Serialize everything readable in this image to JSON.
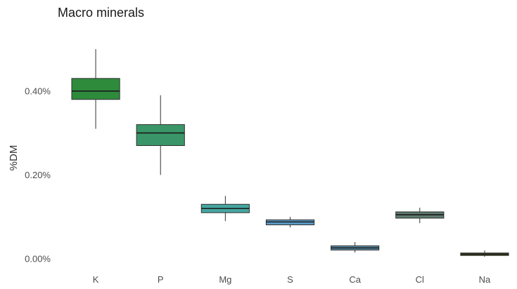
{
  "chart_data": {
    "type": "box",
    "title": "Macro minerals",
    "xlabel": "",
    "ylabel": "%DM",
    "y_unit": "%",
    "ylim": [
      -0.005,
      0.52
    ],
    "y_ticks": [
      0.0,
      0.2,
      0.4
    ],
    "y_tick_labels": [
      "0.00%",
      "0.20%",
      "0.40%"
    ],
    "grid": false,
    "legend": "none",
    "categories": [
      "K",
      "P",
      "Mg",
      "S",
      "Ca",
      "Cl",
      "Na"
    ],
    "series": [
      {
        "boxes": [
          {
            "category": "K",
            "min": 0.31,
            "q1": 0.38,
            "median": 0.4,
            "q3": 0.43,
            "max": 0.5,
            "color": "#2e8b3c"
          },
          {
            "category": "P",
            "min": 0.2,
            "q1": 0.27,
            "median": 0.3,
            "q3": 0.32,
            "max": 0.39,
            "color": "#3a9668"
          },
          {
            "category": "Mg",
            "min": 0.09,
            "q1": 0.11,
            "median": 0.12,
            "q3": 0.13,
            "max": 0.15,
            "color": "#46a6a0"
          },
          {
            "category": "S",
            "min": 0.075,
            "q1": 0.081,
            "median": 0.088,
            "q3": 0.093,
            "max": 0.1,
            "color": "#5b9ac7"
          },
          {
            "category": "Ca",
            "min": 0.015,
            "q1": 0.021,
            "median": 0.026,
            "q3": 0.031,
            "max": 0.04,
            "color": "#5a8ea6"
          },
          {
            "category": "Cl",
            "min": 0.085,
            "q1": 0.097,
            "median": 0.105,
            "q3": 0.112,
            "max": 0.122,
            "color": "#5f7a6e"
          },
          {
            "category": "Na",
            "min": 0.005,
            "q1": 0.008,
            "median": 0.011,
            "q3": 0.014,
            "max": 0.02,
            "color": "#5a5f28"
          }
        ]
      }
    ]
  }
}
